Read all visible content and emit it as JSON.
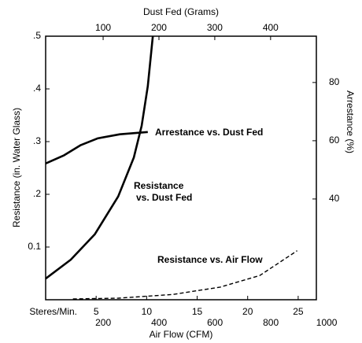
{
  "chart_data": {
    "type": "line",
    "color": "#000000",
    "ylabel": "Resistance (in. Water Glass)",
    "ylim": [
      0,
      0.5
    ],
    "yticks": [
      {
        "value": 0.1,
        "label": "0.1"
      },
      {
        "value": 0.2,
        "label": ".2"
      },
      {
        "value": 0.3,
        "label": ".3"
      },
      {
        "value": 0.4,
        "label": ".4"
      },
      {
        "value": 0.5,
        "label": ".5"
      }
    ],
    "y2label": "Arrestance (%)",
    "y2lim": [
      5.4,
      95.9
    ],
    "y2ticks": [
      40,
      60,
      80
    ],
    "xlabel": "Steres/Min.",
    "xlim": [
      0,
      26.8
    ],
    "xticks": [
      5,
      10,
      15,
      20,
      25
    ],
    "x2label": "Air Flow (CFM)",
    "x2lim": [
      -6,
      963
    ],
    "x2ticks": [
      200,
      400,
      600,
      800,
      1000
    ],
    "x3label": "Dust Fed (Grams)",
    "x3lim": [
      -3,
      482
    ],
    "x3ticks": [
      100,
      200,
      300,
      400
    ],
    "series": [
      {
        "label": [
          "Arrestance vs. Dust Fed"
        ],
        "axis": "y2",
        "xaxis": "x3",
        "dash": false,
        "x": [
          -3,
          30,
          60,
          90,
          130,
          180
        ],
        "values": [
          52.2,
          55,
          58.5,
          60.8,
          62.2,
          63
        ]
      },
      {
        "label": [
          "Resistance",
          "vs. Dust Fed"
        ],
        "axis": "y",
        "xaxis": "x3",
        "dash": false,
        "x": [
          -3,
          42,
          85,
          127,
          155,
          169,
          180,
          189
        ],
        "values": [
          0.04,
          0.076,
          0.124,
          0.196,
          0.27,
          0.33,
          0.405,
          0.5
        ]
      },
      {
        "label": [
          "Resistance vs. Air Flow"
        ],
        "axis": "y",
        "xaxis": "x",
        "dash": true,
        "x": [
          2.7,
          7.2,
          12.6,
          17.3,
          21.2,
          24.9
        ],
        "values": [
          0.0015,
          0.003,
          0.01,
          0.024,
          0.046,
          0.093
        ]
      }
    ]
  }
}
